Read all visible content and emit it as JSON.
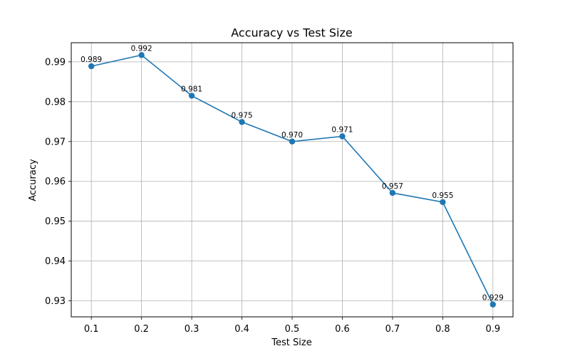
{
  "chart_data": {
    "type": "line",
    "title": "Accuracy vs Test Size",
    "xlabel": "Test Size",
    "ylabel": "Accuracy",
    "x": [
      0.1,
      0.2,
      0.3,
      0.4,
      0.5,
      0.6,
      0.7,
      0.8,
      0.9
    ],
    "series": [
      {
        "values": [
          0.9889,
          0.9917,
          0.9815,
          0.9749,
          0.97,
          0.9713,
          0.9571,
          0.9548,
          0.9291
        ],
        "data_labels": [
          "0.989",
          "0.992",
          "0.981",
          "0.975",
          "0.970",
          "0.971",
          "0.957",
          "0.955",
          "0.929"
        ],
        "color": "#1f77b4",
        "marker": "circle"
      }
    ],
    "x_ticks": [
      "0.1",
      "0.2",
      "0.3",
      "0.4",
      "0.5",
      "0.6",
      "0.7",
      "0.8",
      "0.9"
    ],
    "y_ticks": [
      "0.93",
      "0.94",
      "0.95",
      "0.96",
      "0.97",
      "0.98",
      "0.99"
    ],
    "xlim": [
      0.06,
      0.94
    ],
    "ylim": [
      0.926,
      0.9948
    ],
    "grid": true
  }
}
